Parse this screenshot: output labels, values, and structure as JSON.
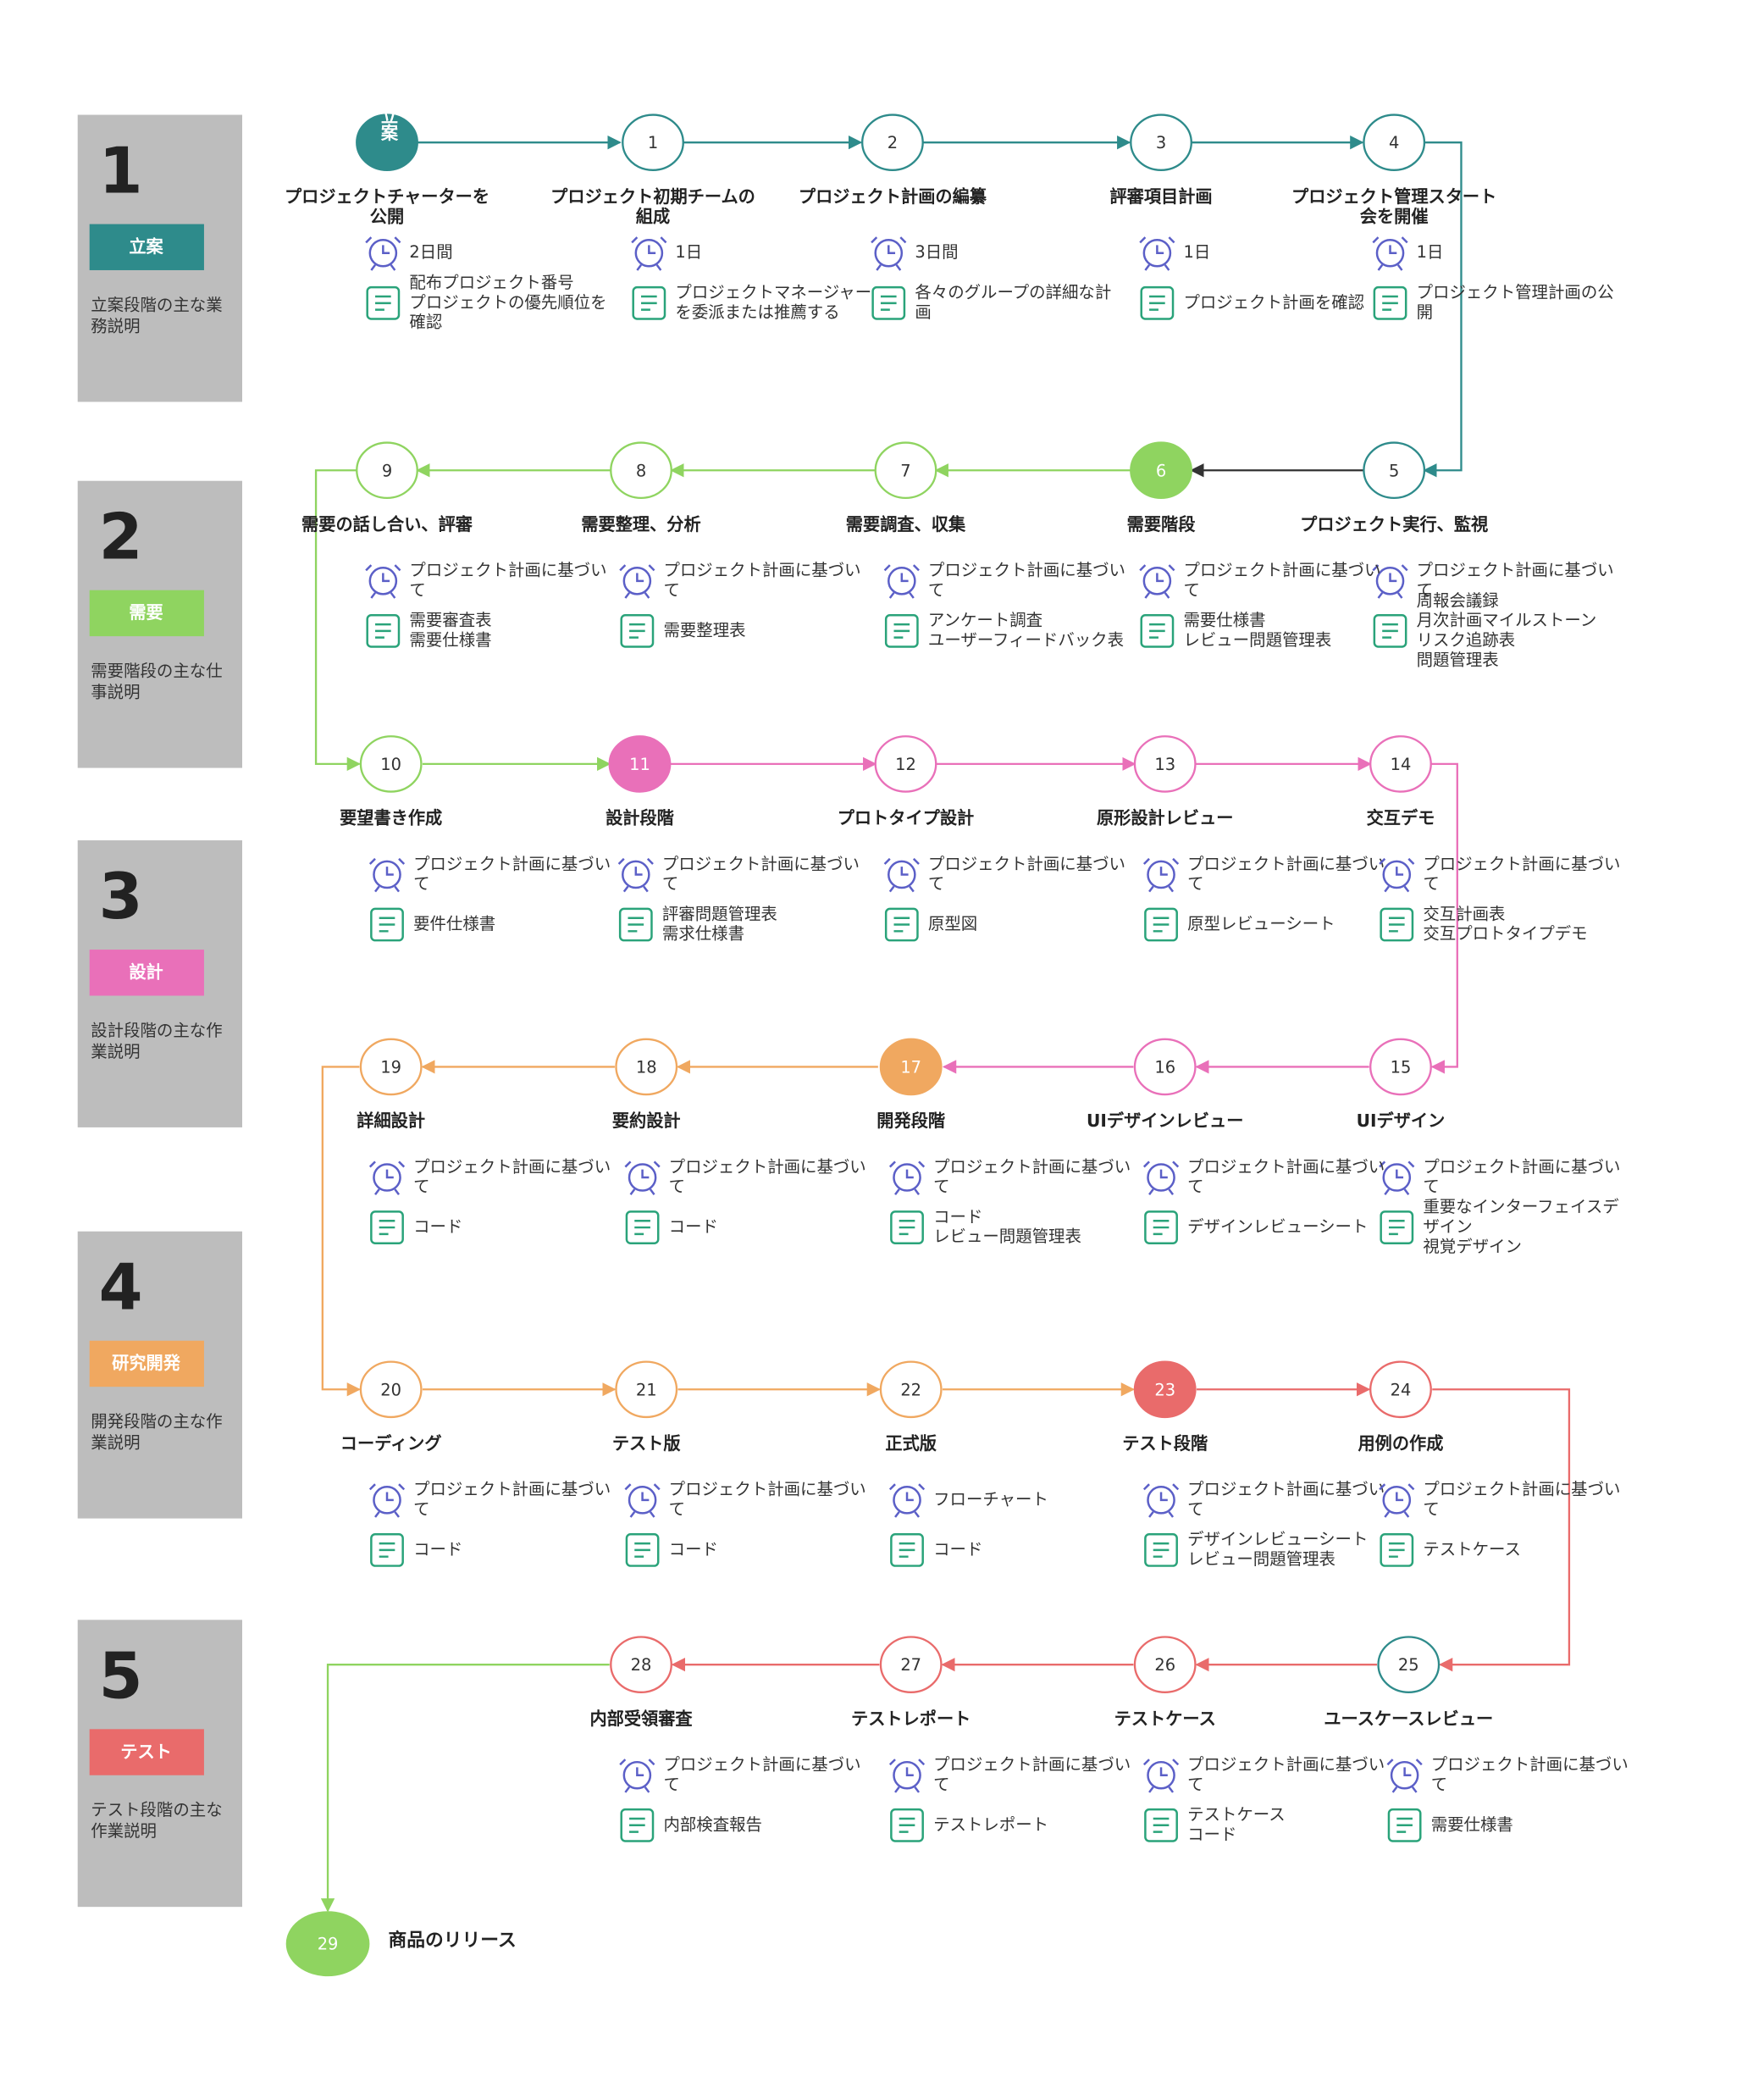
{
  "phases": [
    {
      "number": "1",
      "name": "立案",
      "description": [
        "立案段階の主な業",
        "務説明"
      ]
    },
    {
      "number": "2",
      "name": "需要",
      "description": [
        "需要階段の主な仕",
        "事説明"
      ]
    },
    {
      "number": "3",
      "name": "設計",
      "description": [
        "設計段階の主な作",
        "業説明"
      ]
    },
    {
      "number": "4",
      "name": "研究開発",
      "description": [
        "開発段階の主な作",
        "業説明"
      ]
    },
    {
      "number": "5",
      "name": "テスト",
      "description": [
        "テスト段階の主な",
        "作業説明"
      ]
    }
  ],
  "nodes": [
    {
      "label": "立案",
      "title": [
        "プロジェクトチャーターを",
        "公開"
      ],
      "duration": [
        "2日間"
      ],
      "docs": [
        "配布プロジェクト番号",
        "プロジェクトの優先順位を",
        "確認"
      ]
    },
    {
      "label": "1",
      "title": [
        "プロジェクト初期チームの",
        "組成"
      ],
      "duration": [
        "1日"
      ],
      "docs": [
        "プロジェクトマネージャー",
        "を委派または推薦する"
      ]
    },
    {
      "label": "2",
      "title": [
        "プロジェクト計画の編纂"
      ],
      "duration": [
        "3日間"
      ],
      "docs": [
        "各々のグループの詳細な計",
        "画"
      ]
    },
    {
      "label": "3",
      "title": [
        "評審項目計画"
      ],
      "duration": [
        "1日"
      ],
      "docs": [
        "プロジェクト計画を確認"
      ]
    },
    {
      "label": "4",
      "title": [
        "プロジェクト管理スタート",
        "会を開催"
      ],
      "duration": [
        "1日"
      ],
      "docs": [
        "プロジェクト管理計画の公",
        "開"
      ]
    },
    {
      "label": "5",
      "title": [
        "プロジェクト実行、監視"
      ],
      "duration": [
        "プロジェクト計画に基づい",
        "て"
      ],
      "docs": [
        "周報会議録",
        "月次計画マイルストーン",
        "リスク追跡表",
        "問題管理表"
      ]
    },
    {
      "label": "6",
      "title": [
        "需要階段"
      ],
      "duration": [
        "プロジェクト計画に基づい",
        "て"
      ],
      "docs": [
        "需要仕様書",
        "レビュー問題管理表"
      ]
    },
    {
      "label": "7",
      "title": [
        "需要調査、収集"
      ],
      "duration": [
        "プロジェクト計画に基づい",
        "て"
      ],
      "docs": [
        "アンケート調査",
        "ユーザーフィードバック表"
      ]
    },
    {
      "label": "8",
      "title": [
        "需要整理、分析"
      ],
      "duration": [
        "プロジェクト計画に基づい",
        "て"
      ],
      "docs": [
        "需要整理表"
      ]
    },
    {
      "label": "9",
      "title": [
        "需要の話し合い、評審"
      ],
      "duration": [
        "プロジェクト計画に基づい",
        "て"
      ],
      "docs": [
        "需要審査表",
        "需要仕様書"
      ]
    },
    {
      "label": "10",
      "title": [
        "要望書き作成"
      ],
      "duration": [
        "プロジェクト計画に基づい",
        "て"
      ],
      "docs": [
        "要件仕様書"
      ]
    },
    {
      "label": "11",
      "title": [
        "設計段階"
      ],
      "duration": [
        "プロジェクト計画に基づい",
        "て"
      ],
      "docs": [
        "評審問題管理表",
        "需求仕様書"
      ]
    },
    {
      "label": "12",
      "title": [
        "プロトタイプ設計"
      ],
      "duration": [
        "プロジェクト計画に基づい",
        "て"
      ],
      "docs": [
        "原型図"
      ]
    },
    {
      "label": "13",
      "title": [
        "原形設計レビュー"
      ],
      "duration": [
        "プロジェクト計画に基づい",
        "て"
      ],
      "docs": [
        "原型レビューシート"
      ]
    },
    {
      "label": "14",
      "title": [
        "交互デモ"
      ],
      "duration": [
        "プロジェクト計画に基づい",
        "て"
      ],
      "docs": [
        "交互計画表",
        "交互プロトタイプデモ"
      ]
    },
    {
      "label": "15",
      "title": [
        "UIデザイン"
      ],
      "duration": [
        "プロジェクト計画に基づい",
        "て"
      ],
      "docs": [
        "重要なインターフェイスデ",
        "ザイン",
        "視覚デザイン"
      ]
    },
    {
      "label": "16",
      "title": [
        "UIデザインレビュー"
      ],
      "duration": [
        "プロジェクト計画に基づい",
        "て"
      ],
      "docs": [
        "デザインレビューシート"
      ]
    },
    {
      "label": "17",
      "title": [
        "開発段階"
      ],
      "duration": [
        "プロジェクト計画に基づい",
        "て"
      ],
      "docs": [
        "コード",
        "レビュー問題管理表"
      ]
    },
    {
      "label": "18",
      "title": [
        "要約設計"
      ],
      "duration": [
        "プロジェクト計画に基づい",
        "て"
      ],
      "docs": [
        "コード"
      ]
    },
    {
      "label": "19",
      "title": [
        "詳細設計"
      ],
      "duration": [
        "プロジェクト計画に基づい",
        "て"
      ],
      "docs": [
        "コード"
      ]
    },
    {
      "label": "20",
      "title": [
        "コーディング"
      ],
      "duration": [
        "プロジェクト計画に基づい",
        "て"
      ],
      "docs": [
        "コード"
      ]
    },
    {
      "label": "21",
      "title": [
        "テスト版"
      ],
      "duration": [
        "プロジェクト計画に基づい",
        "て"
      ],
      "docs": [
        "コード"
      ]
    },
    {
      "label": "22",
      "title": [
        "正式版"
      ],
      "duration": [
        "フローチャート"
      ],
      "docs": [
        "コード"
      ]
    },
    {
      "label": "23",
      "title": [
        "テスト段階"
      ],
      "duration": [
        "プロジェクト計画に基づい",
        "て"
      ],
      "docs": [
        "デザインレビューシート",
        "レビュー問題管理表"
      ]
    },
    {
      "label": "24",
      "title": [
        "用例の作成"
      ],
      "duration": [
        "プロジェクト計画に基づい",
        "て"
      ],
      "docs": [
        "テストケース"
      ]
    },
    {
      "label": "25",
      "title": [
        "ユースケースレビュー"
      ],
      "duration": [
        "プロジェクト計画に基づい",
        "て"
      ],
      "docs": [
        "需要仕様書"
      ]
    },
    {
      "label": "26",
      "title": [
        "テストケース"
      ],
      "duration": [
        "プロジェクト計画に基づい",
        "て"
      ],
      "docs": [
        "テストケース",
        "コード"
      ]
    },
    {
      "label": "27",
      "title": [
        "テストレポート"
      ],
      "duration": [
        "プロジェクト計画に基づい",
        "て"
      ],
      "docs": [
        "テストレポート"
      ]
    },
    {
      "label": "28",
      "title": [
        "内部受領審査"
      ],
      "duration": [
        "プロジェクト計画に基づい",
        "て"
      ],
      "docs": [
        "内部検査報告"
      ]
    },
    {
      "label": "29",
      "title": [
        "商品のリリース"
      ]
    }
  ]
}
